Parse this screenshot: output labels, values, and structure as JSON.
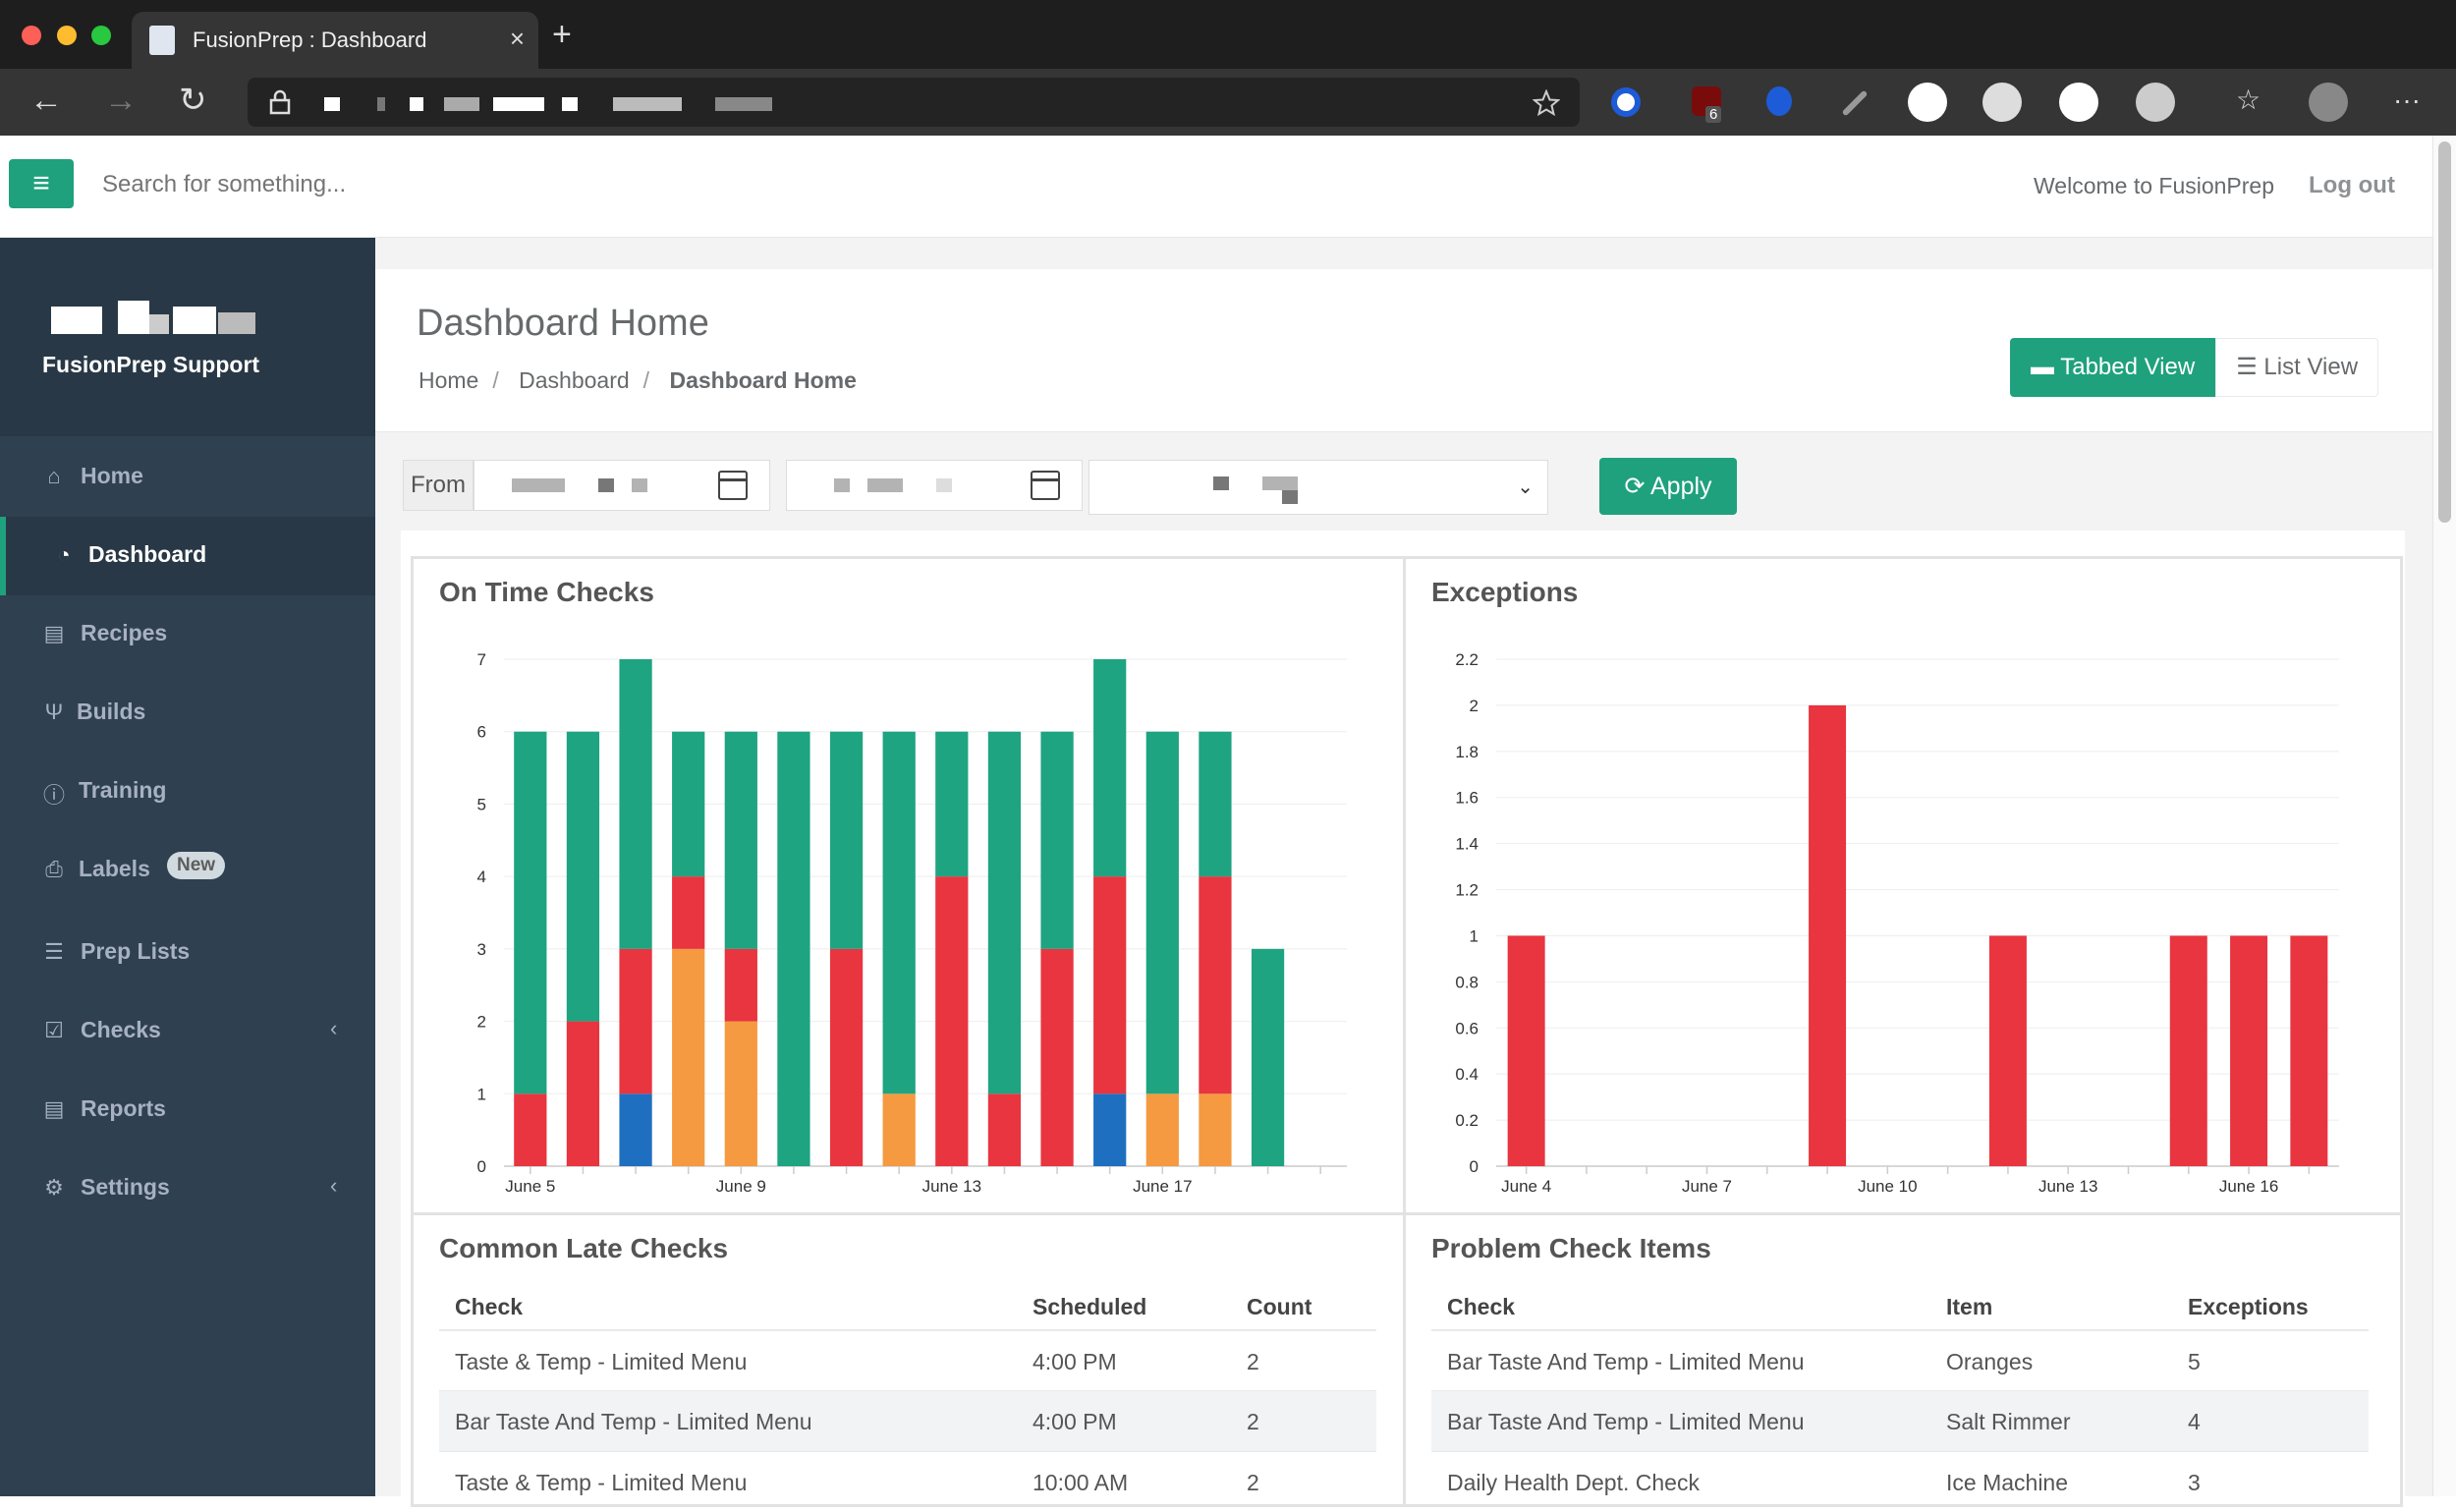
{
  "browser": {
    "tab_title": "FusionPrep : Dashboard",
    "ext_badge": "6"
  },
  "header": {
    "search_placeholder": "Search for something...",
    "welcome": "Welcome to FusionPrep",
    "logout": "Log out"
  },
  "sidebar": {
    "brand": "FusionPrep Support",
    "items": [
      {
        "label": "Home",
        "icon": "home-icon"
      },
      {
        "label": "Dashboard",
        "icon": "dashboard-icon"
      },
      {
        "label": "Recipes",
        "icon": "recipes-icon"
      },
      {
        "label": "Builds",
        "icon": "builds-icon"
      },
      {
        "label": "Training",
        "icon": "info-icon"
      },
      {
        "label": "Labels",
        "icon": "print-icon",
        "badge": "New"
      },
      {
        "label": "Prep Lists",
        "icon": "list-icon"
      },
      {
        "label": "Checks",
        "icon": "check-icon"
      },
      {
        "label": "Reports",
        "icon": "reports-icon"
      },
      {
        "label": "Settings",
        "icon": "gears-icon"
      }
    ]
  },
  "page": {
    "title": "Dashboard Home",
    "breadcrumb": [
      "Home",
      "Dashboard",
      "Dashboard Home"
    ],
    "tabbed_view": "Tabbed View",
    "list_view": "List View"
  },
  "filter": {
    "from_label": "From",
    "apply_label": "Apply"
  },
  "colors": {
    "accent": "#1fa17d",
    "green": "#1ea481",
    "red": "#e8353f",
    "orange": "#f59a41",
    "blue": "#1e6fbf"
  },
  "chart_data": [
    {
      "type": "bar",
      "title": "On Time Checks",
      "stacked": true,
      "ylim": [
        0,
        7
      ],
      "yticks": [
        "0",
        "1",
        "2",
        "3",
        "4",
        "5",
        "6",
        "7"
      ],
      "xtick_labels": [
        "June 5",
        "June 9",
        "June 13",
        "June 17"
      ],
      "categories": [
        "June 5",
        "June 6",
        "June 7",
        "June 8",
        "June 9",
        "June 10",
        "June 11",
        "June 12",
        "June 13",
        "June 14",
        "June 15",
        "June 16",
        "June 17",
        "June 18",
        "June 19",
        "June 20"
      ],
      "series": [
        {
          "color": "#1e6fbf",
          "values": [
            0,
            0,
            1,
            0,
            0,
            0,
            0,
            0,
            0,
            0,
            0,
            1,
            0,
            0,
            0,
            0
          ]
        },
        {
          "color": "#f59a41",
          "values": [
            0,
            0,
            0,
            3,
            2,
            0,
            0,
            1,
            0,
            0,
            0,
            0,
            1,
            1,
            0,
            0
          ]
        },
        {
          "color": "#e8353f",
          "values": [
            1,
            2,
            2,
            1,
            1,
            0,
            3,
            0,
            4,
            1,
            3,
            3,
            0,
            3,
            0,
            0
          ]
        },
        {
          "color": "#1ea481",
          "values": [
            5,
            4,
            4,
            2,
            3,
            6,
            3,
            5,
            2,
            5,
            3,
            3,
            5,
            2,
            3,
            0
          ]
        }
      ]
    },
    {
      "type": "bar",
      "title": "Exceptions",
      "ylim": [
        0,
        2.2
      ],
      "yticks": [
        "0",
        "0.2",
        "0.4",
        "0.6",
        "0.8",
        "1",
        "1.2",
        "1.4",
        "1.6",
        "1.8",
        "2",
        "2.2"
      ],
      "xtick_labels": [
        "June 4",
        "June 7",
        "June 10",
        "June 13",
        "June 16"
      ],
      "categories": [
        "June 4",
        "June 5",
        "June 6",
        "June 7",
        "June 8",
        "June 9",
        "June 10",
        "June 11",
        "June 12",
        "June 13",
        "June 14",
        "June 15",
        "June 16",
        "June 17"
      ],
      "values": [
        1,
        0,
        0,
        0,
        0,
        2,
        0,
        0,
        1,
        0,
        0,
        1,
        1,
        1
      ],
      "color": "#e8353f"
    }
  ],
  "late_checks": {
    "title": "Common Late Checks",
    "headers": [
      "Check",
      "Scheduled",
      "Count"
    ],
    "rows": [
      [
        "Taste & Temp - Limited Menu",
        "4:00 PM",
        "2"
      ],
      [
        "Bar Taste And Temp - Limited Menu",
        "4:00 PM",
        "2"
      ],
      [
        "Taste & Temp - Limited Menu",
        "10:00 AM",
        "2"
      ]
    ]
  },
  "problem_items": {
    "title": "Problem Check Items",
    "headers": [
      "Check",
      "Item",
      "Exceptions"
    ],
    "rows": [
      [
        "Bar Taste And Temp - Limited Menu",
        "Oranges",
        "5"
      ],
      [
        "Bar Taste And Temp - Limited Menu",
        "Salt Rimmer",
        "4"
      ],
      [
        "Daily Health Dept. Check",
        "Ice Machine",
        "3"
      ]
    ]
  }
}
